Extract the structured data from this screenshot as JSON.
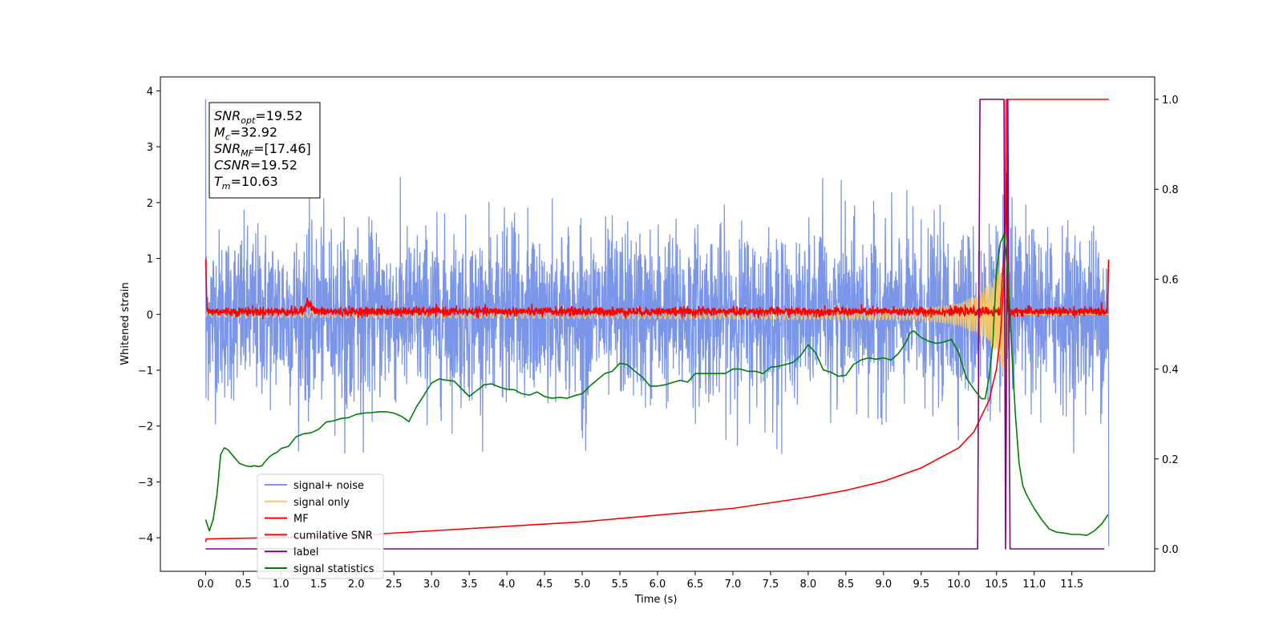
{
  "chart_data": {
    "type": "line",
    "xlabel": "Time (s)",
    "ylabel": "Whitened strain",
    "xlim": [
      -0.6,
      12.6
    ],
    "ylim": [
      -4.6,
      4.25
    ],
    "ylim_right": [
      -0.05,
      1.05
    ],
    "x_ticks": [
      "0.0",
      "0.5",
      "1.0",
      "1.5",
      "2.0",
      "2.5",
      "3.0",
      "3.5",
      "4.0",
      "4.5",
      "5.0",
      "5.5",
      "6.0",
      "6.5",
      "7.0",
      "7.5",
      "8.0",
      "8.5",
      "9.0",
      "9.5",
      "10.0",
      "10.5",
      "11.0",
      "11.5"
    ],
    "y_ticks": [
      "4",
      "3",
      "2",
      "1",
      "0",
      "−1",
      "−2",
      "−3",
      "−4"
    ],
    "y_ticks_right": [
      "1.0",
      "0.8",
      "0.6",
      "0.4",
      "0.2",
      "0.0"
    ],
    "legend_placement": "lower-left",
    "annotation": [
      {
        "base": "SNR",
        "sub": "opt",
        "value": "=19.52"
      },
      {
        "base": "M",
        "sub": "c",
        "value": "=32.92"
      },
      {
        "base": "SNR",
        "sub": "MF",
        "value": "=[17.46]"
      },
      {
        "base": "CSNR",
        "sub": "",
        "value": "=19.52"
      },
      {
        "base": "T",
        "sub": "m",
        "value": "=10.63"
      }
    ],
    "series": [
      {
        "name": "signal+ noise",
        "color": "#7b96e8",
        "axis": "left",
        "noise_std": 0.75,
        "x": [
          0.0,
          11.99
        ],
        "y": [
          0.0,
          0.0
        ]
      },
      {
        "name": "signal only",
        "color": "#f5c76b",
        "axis": "left",
        "x": [
          0.0,
          9.5,
          10.0,
          10.3,
          10.5,
          10.6,
          10.63,
          10.64,
          10.66,
          11.99
        ],
        "envelope": [
          0.05,
          0.1,
          0.2,
          0.4,
          0.7,
          1.1,
          3.1,
          0.2,
          0.0,
          0.0
        ]
      },
      {
        "name": "MF",
        "color": "#ff0000",
        "axis": "left",
        "noise_std": 0.04,
        "x": [
          0.0,
          0.02,
          1.3,
          1.35,
          1.45,
          10.55,
          10.62,
          10.63,
          10.65,
          11.97,
          11.99
        ],
        "y": [
          1.0,
          0.05,
          0.05,
          0.25,
          0.05,
          0.05,
          1.5,
          2.6,
          0.05,
          0.05,
          0.95
        ]
      },
      {
        "name": "cumilative SNR",
        "color": "#ff0000",
        "axis": "right",
        "x": [
          0.0,
          0.01,
          1.0,
          2.0,
          3.0,
          4.0,
          5.0,
          6.0,
          7.0,
          8.0,
          8.5,
          9.0,
          9.5,
          10.0,
          10.2,
          10.4,
          10.5,
          10.55,
          10.6,
          10.62,
          10.63,
          11.99
        ],
        "y": [
          0.015,
          0.022,
          0.025,
          0.03,
          0.04,
          0.05,
          0.06,
          0.075,
          0.09,
          0.115,
          0.13,
          0.15,
          0.18,
          0.225,
          0.26,
          0.33,
          0.4,
          0.47,
          0.6,
          0.75,
          1.0,
          1.0
        ]
      },
      {
        "name": "label",
        "color": "#800080",
        "axis": "right",
        "x": [
          0.0,
          10.25,
          10.28,
          10.6,
          10.62,
          10.65,
          10.68,
          11.93
        ],
        "y": [
          0.0,
          0.0,
          1.0,
          1.0,
          0.0,
          1.0,
          0.0,
          0.0
        ]
      },
      {
        "name": "signal statistics",
        "color": "#008000",
        "axis": "right",
        "x": [
          0.0,
          0.05,
          0.1,
          0.15,
          0.2,
          0.25,
          0.3,
          0.35,
          0.4,
          0.45,
          0.5,
          0.55,
          0.6,
          0.65,
          0.7,
          0.75,
          0.8,
          0.85,
          0.9,
          0.95,
          1.0,
          1.1,
          1.2,
          1.3,
          1.4,
          1.5,
          1.6,
          1.7,
          1.8,
          1.9,
          2.0,
          2.1,
          2.2,
          2.3,
          2.4,
          2.5,
          2.6,
          2.7,
          2.8,
          2.9,
          3.0,
          3.1,
          3.2,
          3.3,
          3.4,
          3.5,
          3.6,
          3.7,
          3.8,
          3.9,
          4.0,
          4.1,
          4.2,
          4.3,
          4.4,
          4.5,
          4.6,
          4.7,
          4.8,
          4.9,
          5.0,
          5.1,
          5.2,
          5.3,
          5.4,
          5.5,
          5.6,
          5.7,
          5.8,
          5.9,
          6.0,
          6.1,
          6.2,
          6.3,
          6.4,
          6.5,
          6.6,
          6.7,
          6.8,
          6.9,
          7.0,
          7.1,
          7.2,
          7.3,
          7.4,
          7.5,
          7.6,
          7.7,
          7.8,
          7.9,
          8.0,
          8.1,
          8.2,
          8.3,
          8.4,
          8.5,
          8.6,
          8.7,
          8.8,
          8.9,
          9.0,
          9.1,
          9.2,
          9.3,
          9.35,
          9.4,
          9.5,
          9.6,
          9.7,
          9.8,
          9.9,
          10.0,
          10.1,
          10.2,
          10.3,
          10.35,
          10.4,
          10.45,
          10.5,
          10.55,
          10.6,
          10.65,
          10.7,
          10.75,
          10.8,
          10.85,
          10.9,
          11.0,
          11.1,
          11.2,
          11.3,
          11.4,
          11.5,
          11.6,
          11.7,
          11.8,
          11.9,
          11.98
        ],
        "y": [
          0.065,
          0.04,
          0.065,
          0.12,
          0.21,
          0.225,
          0.22,
          0.21,
          0.2,
          0.19,
          0.187,
          0.184,
          0.183,
          0.185,
          0.183,
          0.185,
          0.196,
          0.205,
          0.211,
          0.215,
          0.223,
          0.228,
          0.249,
          0.256,
          0.258,
          0.266,
          0.282,
          0.285,
          0.29,
          0.292,
          0.299,
          0.302,
          0.303,
          0.305,
          0.305,
          0.302,
          0.295,
          0.283,
          0.316,
          0.342,
          0.369,
          0.378,
          0.375,
          0.373,
          0.356,
          0.339,
          0.352,
          0.365,
          0.367,
          0.36,
          0.355,
          0.354,
          0.345,
          0.342,
          0.349,
          0.339,
          0.335,
          0.337,
          0.335,
          0.341,
          0.345,
          0.362,
          0.376,
          0.39,
          0.395,
          0.413,
          0.41,
          0.395,
          0.382,
          0.362,
          0.362,
          0.365,
          0.37,
          0.375,
          0.371,
          0.39,
          0.39,
          0.39,
          0.39,
          0.39,
          0.4,
          0.4,
          0.395,
          0.395,
          0.39,
          0.404,
          0.406,
          0.41,
          0.415,
          0.43,
          0.454,
          0.436,
          0.398,
          0.393,
          0.384,
          0.386,
          0.41,
          0.42,
          0.425,
          0.422,
          0.425,
          0.42,
          0.435,
          0.46,
          0.48,
          0.485,
          0.47,
          0.462,
          0.457,
          0.46,
          0.466,
          0.435,
          0.38,
          0.355,
          0.334,
          0.334,
          0.38,
          0.455,
          0.62,
          0.68,
          0.7,
          0.62,
          0.45,
          0.3,
          0.19,
          0.14,
          0.12,
          0.09,
          0.065,
          0.044,
          0.037,
          0.035,
          0.032,
          0.032,
          0.03,
          0.04,
          0.056,
          0.076
        ]
      }
    ]
  }
}
